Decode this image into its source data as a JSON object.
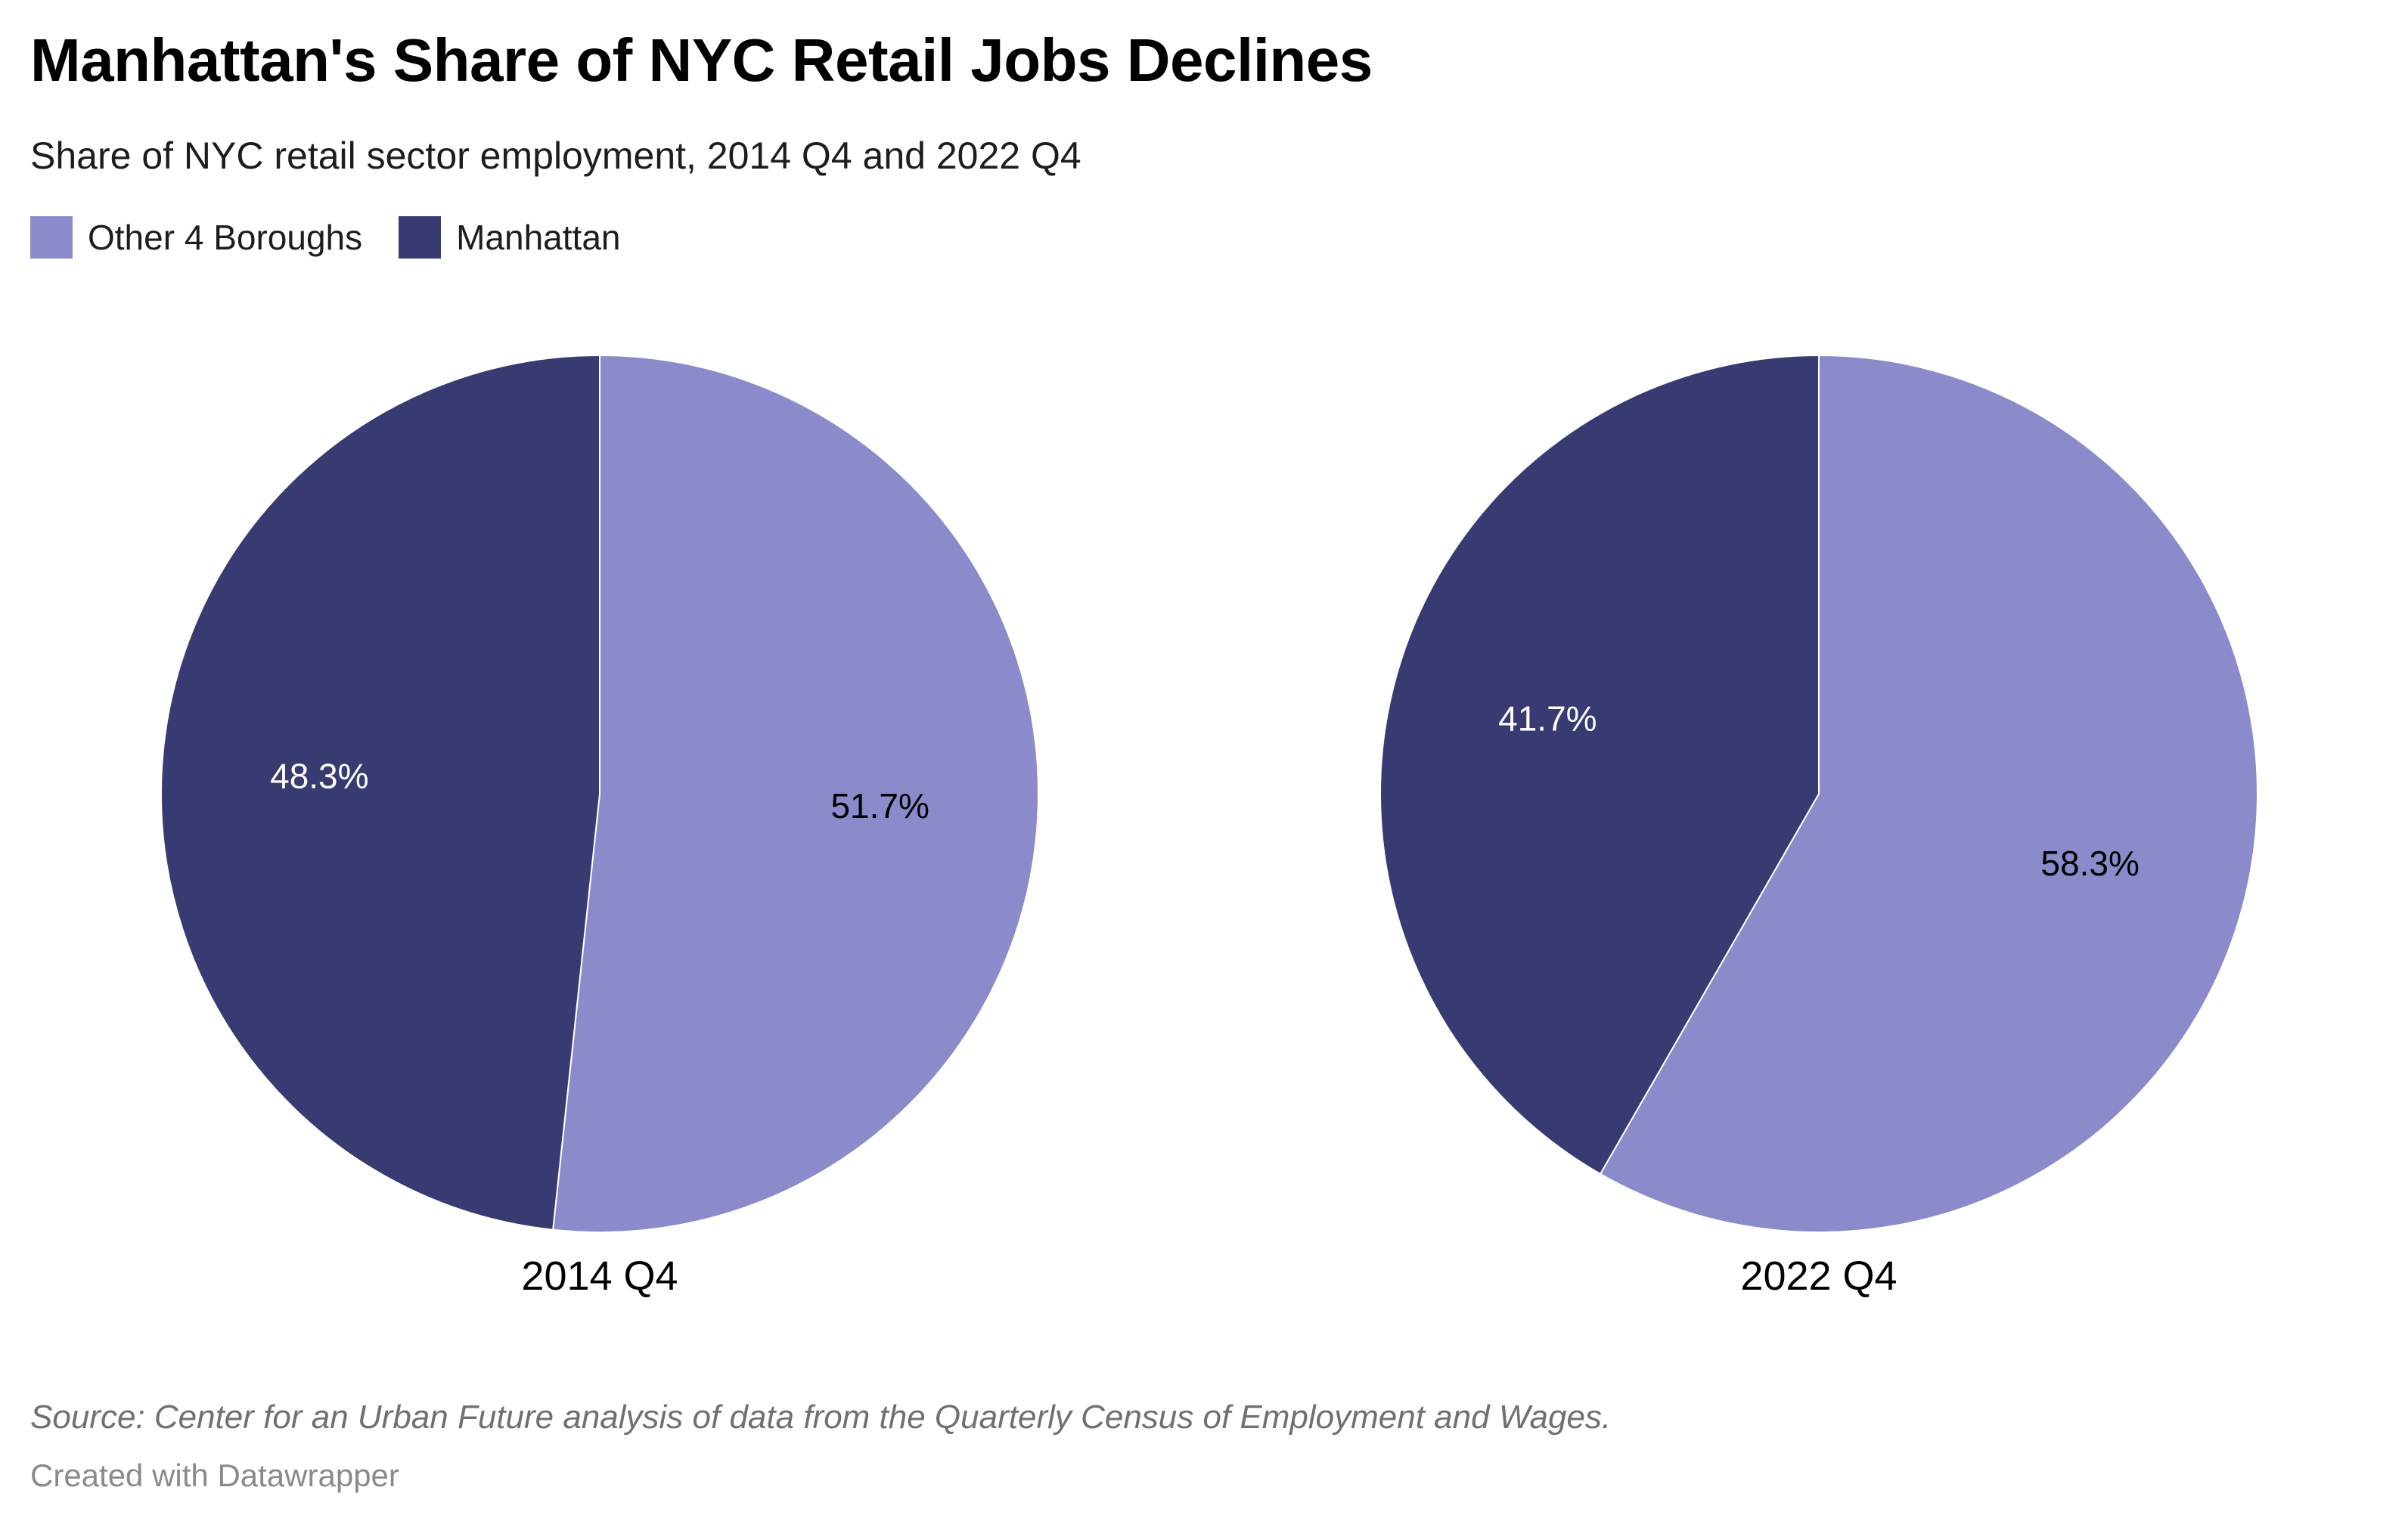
{
  "header": {
    "title": "Manhattan's Share of NYC Retail Jobs Declines",
    "subtitle": "Share of NYC retail sector employment, 2014 Q4 and 2022 Q4"
  },
  "legend": [
    {
      "label": "Other 4 Boroughs",
      "color": "#8b8bcb"
    },
    {
      "label": "Manhattan",
      "color": "#383b72"
    }
  ],
  "chart_data": [
    {
      "type": "pie",
      "title": "2014 Q4",
      "slices": [
        {
          "label": "Other 4 Boroughs",
          "value": 51.7,
          "display": "51.7%",
          "color": "#8b8bcb",
          "label_color": "#000000"
        },
        {
          "label": "Manhattan",
          "value": 48.3,
          "display": "48.3%",
          "color": "#383b72",
          "label_color": "#ffffff"
        }
      ]
    },
    {
      "type": "pie",
      "title": "2022 Q4",
      "slices": [
        {
          "label": "Other 4 Boroughs",
          "value": 58.3,
          "display": "58.3%",
          "color": "#8b8bcb",
          "label_color": "#000000"
        },
        {
          "label": "Manhattan",
          "value": 41.7,
          "display": "41.7%",
          "color": "#383b72",
          "label_color": "#ffffff"
        }
      ]
    }
  ],
  "footer": {
    "source": "Source: Center for an Urban Future analysis of data from the Quarterly Census of Employment and Wages.",
    "credit": "Created with Datawrapper"
  }
}
